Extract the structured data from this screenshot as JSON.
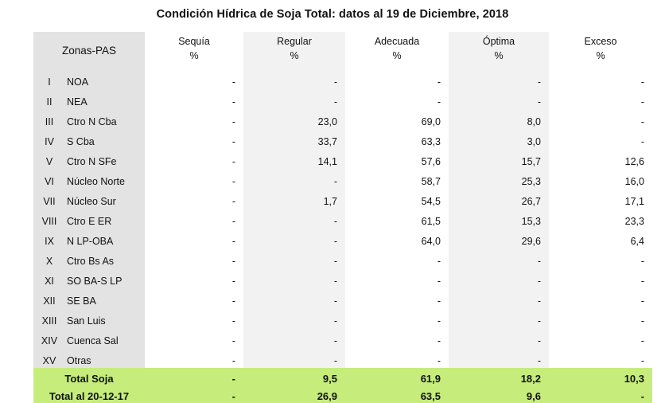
{
  "title": "Condición Hídrica de Soja Total: datos al 19 de Diciembre, 2018",
  "headers": {
    "zonas": "Zonas-PAS",
    "sequia": "Sequía",
    "regular": "Regular",
    "adecuada": "Adecuada",
    "optima": "Óptima",
    "exceso": "Exceso",
    "pct": "%"
  },
  "rows": [
    {
      "num": "I",
      "zona": "NOA",
      "sequia": "-",
      "regular": "-",
      "adecuada": "-",
      "optima": "-",
      "exceso": "-"
    },
    {
      "num": "II",
      "zona": "NEA",
      "sequia": "-",
      "regular": "-",
      "adecuada": "-",
      "optima": "-",
      "exceso": "-"
    },
    {
      "num": "III",
      "zona": "Ctro N Cba",
      "sequia": "-",
      "regular": "23,0",
      "adecuada": "69,0",
      "optima": "8,0",
      "exceso": "-"
    },
    {
      "num": "IV",
      "zona": "S Cba",
      "sequia": "-",
      "regular": "33,7",
      "adecuada": "63,3",
      "optima": "3,0",
      "exceso": "-"
    },
    {
      "num": "V",
      "zona": "Ctro N SFe",
      "sequia": "-",
      "regular": "14,1",
      "adecuada": "57,6",
      "optima": "15,7",
      "exceso": "12,6"
    },
    {
      "num": "VI",
      "zona": "Núcleo Norte",
      "sequia": "-",
      "regular": "-",
      "adecuada": "58,7",
      "optima": "25,3",
      "exceso": "16,0"
    },
    {
      "num": "VII",
      "zona": "Núcleo Sur",
      "sequia": "-",
      "regular": "1,7",
      "adecuada": "54,5",
      "optima": "26,7",
      "exceso": "17,1"
    },
    {
      "num": "VIII",
      "zona": "Ctro E ER",
      "sequia": "-",
      "regular": "-",
      "adecuada": "61,5",
      "optima": "15,3",
      "exceso": "23,3"
    },
    {
      "num": "IX",
      "zona": "N LP-OBA",
      "sequia": "-",
      "regular": "-",
      "adecuada": "64,0",
      "optima": "29,6",
      "exceso": "6,4"
    },
    {
      "num": "X",
      "zona": "Ctro Bs As",
      "sequia": "-",
      "regular": "-",
      "adecuada": "-",
      "optima": "-",
      "exceso": "-"
    },
    {
      "num": "XI",
      "zona": "SO BA-S LP",
      "sequia": "-",
      "regular": "-",
      "adecuada": "-",
      "optima": "-",
      "exceso": "-"
    },
    {
      "num": "XII",
      "zona": "SE BA",
      "sequia": "-",
      "regular": "-",
      "adecuada": "-",
      "optima": "-",
      "exceso": "-"
    },
    {
      "num": "XIII",
      "zona": "San Luis",
      "sequia": "-",
      "regular": "-",
      "adecuada": "-",
      "optima": "-",
      "exceso": "-"
    },
    {
      "num": "XIV",
      "zona": "Cuenca Sal",
      "sequia": "-",
      "regular": "-",
      "adecuada": "-",
      "optima": "-",
      "exceso": "-"
    },
    {
      "num": "XV",
      "zona": "Otras",
      "sequia": "-",
      "regular": "-",
      "adecuada": "-",
      "optima": "-",
      "exceso": "-"
    }
  ],
  "totals": [
    {
      "label": "Total Soja",
      "sequia": "-",
      "regular": "9,5",
      "adecuada": "61,9",
      "optima": "18,2",
      "exceso": "10,3"
    },
    {
      "label": "Total al 20-12-17",
      "sequia": "-",
      "regular": "26,9",
      "adecuada": "63,5",
      "optima": "9,6",
      "exceso": "-"
    }
  ],
  "colors": {
    "header_grey": "#e3e3e3",
    "alt_column": "#f2f2f2",
    "totals_green": "#c6ec7c"
  }
}
